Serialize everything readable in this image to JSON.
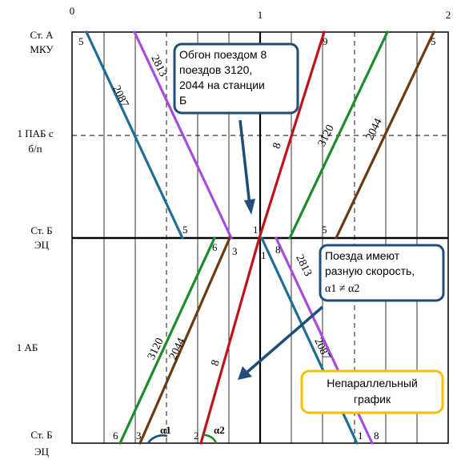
{
  "hour_axis": {
    "h0": "0",
    "h1": "1",
    "h2": "2"
  },
  "stations": {
    "a_line1": "Ст. А",
    "a_line2": "МКУ",
    "pab_line1": "1 ПАБ с",
    "pab_line2": "б/п",
    "b_top_line1": "Ст. Б",
    "b_top_line2": "ЭЦ",
    "ab": "1 АБ",
    "b_bot_line1": "Ст. Б",
    "b_bot_line2": "ЭЦ"
  },
  "train_numbers": {
    "t2087_top": "2087",
    "t2813_top": "2813",
    "t8_top": "8",
    "t3120_top": "3120",
    "t2044_top": "2044",
    "t3120_bot": "3120",
    "t2044_bot": "2044",
    "t8_bot": "8",
    "t2813_bot": "2813",
    "t2087_bot": "2087"
  },
  "minute_marks": {
    "top_5_left": "5",
    "top_9": "9",
    "top_5_right": "5",
    "mid_5_left": "5",
    "mid_1": "1",
    "mid_5_right": "5",
    "sep_6": "6",
    "sep_3": "3",
    "sep_1": "1",
    "sep_8": "8",
    "bot_6": "6",
    "bot_3": "3",
    "bot_2": "2",
    "bot_1": "1",
    "bot_8": "8"
  },
  "angles": {
    "a1": "α1",
    "a2": "α2"
  },
  "callouts": {
    "overtake_line1": "Обгон поездом 8",
    "overtake_line2": "поездов 3120,",
    "overtake_line3": "2044 на станции",
    "overtake_line4": "Б",
    "speed_line1": "Поезда имеют",
    "speed_line2": "разную скорость,",
    "speed_line3": "α1 ≠ α2",
    "nonparallel_line1": "Непараллельный",
    "nonparallel_line2": "график"
  },
  "colors": {
    "train_2087": "#1f6e94",
    "train_2813": "#a64ce0",
    "train_8": "#c0141c",
    "train_3120": "#1e8c2a",
    "train_2044": "#6b3a10",
    "callout_border_blue": "#1f4e79",
    "callout_border_yellow": "#f2c200",
    "arrow": "#1f4e79"
  }
}
